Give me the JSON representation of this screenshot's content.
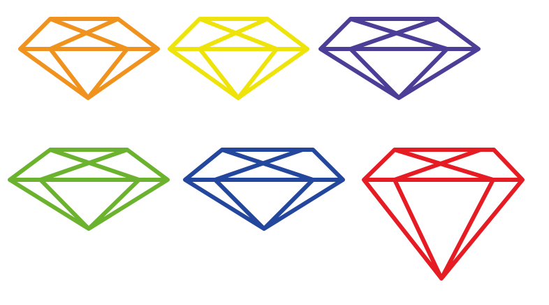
{
  "gems": [
    {
      "name": "orange-gem",
      "color": "#F0921E",
      "icon": "diamond-outline-icon"
    },
    {
      "name": "yellow-gem",
      "color": "#EEE40B",
      "icon": "diamond-outline-icon"
    },
    {
      "name": "purple-gem",
      "color": "#4C3D97",
      "icon": "diamond-outline-icon"
    },
    {
      "name": "green-gem",
      "color": "#6BB32E",
      "icon": "diamond-outline-icon"
    },
    {
      "name": "blue-gem",
      "color": "#23479C",
      "icon": "diamond-outline-icon"
    },
    {
      "name": "red-gem",
      "color": "#E51C23",
      "icon": "diamond-outline-icon"
    }
  ]
}
